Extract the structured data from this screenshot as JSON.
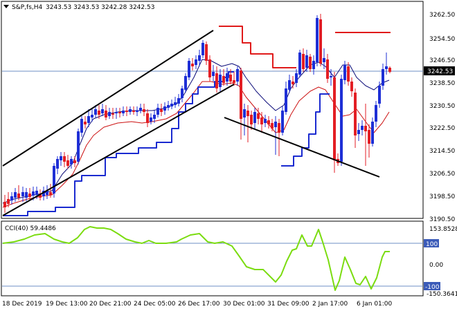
{
  "header": {
    "symbol_label": "S&P,fs,H4",
    "ohlc": "3243.53 3243.53 3242.28 3242.53",
    "dropdown_icon": "triangle-down-icon"
  },
  "price_axis": {
    "labels": [
      "3262.50",
      "3254.50",
      "3246.50",
      "3238.50",
      "3230.50",
      "3222.50",
      "3214.50",
      "3206.50",
      "3198.50",
      "3190.50"
    ],
    "current": "3242.53"
  },
  "indicator": {
    "label": "CCI(40) 59.4486",
    "axis_top": "153.8528",
    "axis_labels": [
      "100",
      "0.00",
      "-100",
      "-150.3641"
    ]
  },
  "time_axis": {
    "labels": [
      "18 Dec 2019",
      "19 Dec 13:00",
      "20 Dec 21:00",
      "24 Dec 05:00",
      "26 Dec 17:00",
      "30 Dec 01:00",
      "31 Dec 09:00",
      "2 Jan 17:00",
      "6 Jan 01:00"
    ]
  },
  "colors": {
    "bull": "#1e2fd6",
    "bear": "#e31e24",
    "trend": "#000000",
    "ma_fast": "#0a0a78",
    "ma_slow": "#cc1111",
    "support": "#1a2ad0",
    "resistance": "#e01a1a",
    "cci": "#7bdc10",
    "grid_h": "#6d8fc4"
  }
}
